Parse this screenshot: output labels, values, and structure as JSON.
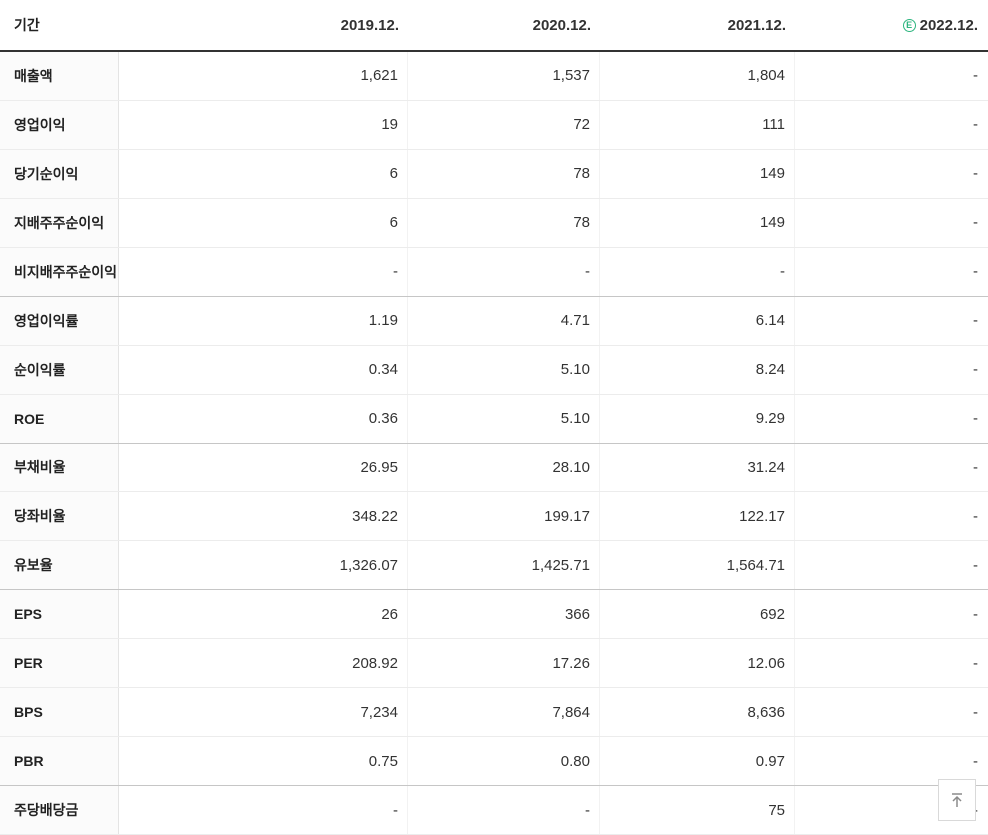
{
  "table": {
    "header": {
      "period_label": "기간",
      "estimate_icon": "E",
      "columns": [
        {
          "label": "2019.12.",
          "estimate": false
        },
        {
          "label": "2020.12.",
          "estimate": false
        },
        {
          "label": "2021.12.",
          "estimate": false
        },
        {
          "label": "2022.12.",
          "estimate": true
        }
      ]
    },
    "rows": [
      {
        "label": "매출액",
        "values": [
          "1,621",
          "1,537",
          "1,804",
          "-"
        ]
      },
      {
        "label": "영업이익",
        "values": [
          "19",
          "72",
          "111",
          "-"
        ]
      },
      {
        "label": "당기순이익",
        "values": [
          "6",
          "78",
          "149",
          "-"
        ]
      },
      {
        "label": "지배주주순이익",
        "values": [
          "6",
          "78",
          "149",
          "-"
        ]
      },
      {
        "label": "비지배주주순이익",
        "values": [
          "-",
          "-",
          "-",
          "-"
        ]
      },
      {
        "label": "영업이익률",
        "values": [
          "1.19",
          "4.71",
          "6.14",
          "-"
        ]
      },
      {
        "label": "순이익률",
        "values": [
          "0.34",
          "5.10",
          "8.24",
          "-"
        ]
      },
      {
        "label": "ROE",
        "values": [
          "0.36",
          "5.10",
          "9.29",
          "-"
        ]
      },
      {
        "label": "부채비율",
        "values": [
          "26.95",
          "28.10",
          "31.24",
          "-"
        ]
      },
      {
        "label": "당좌비율",
        "values": [
          "348.22",
          "199.17",
          "122.17",
          "-"
        ]
      },
      {
        "label": "유보율",
        "values": [
          "1,326.07",
          "1,425.71",
          "1,564.71",
          "-"
        ]
      },
      {
        "label": "EPS",
        "values": [
          "26",
          "366",
          "692",
          "-"
        ]
      },
      {
        "label": "PER",
        "values": [
          "208.92",
          "17.26",
          "12.06",
          "-"
        ]
      },
      {
        "label": "BPS",
        "values": [
          "7,234",
          "7,864",
          "8,636",
          "-"
        ]
      },
      {
        "label": "PBR",
        "values": [
          "0.75",
          "0.80",
          "0.97",
          "-"
        ]
      },
      {
        "label": "주당배당금",
        "values": [
          "-",
          "-",
          "75",
          "-"
        ]
      }
    ],
    "group_end_rows": [
      4,
      7,
      10,
      14
    ]
  },
  "colors": {
    "estimate_green": "#2db57f",
    "header_border": "#333333"
  },
  "scroll_top_button": {
    "icon_name": "arrow-up-to-top-icon"
  }
}
